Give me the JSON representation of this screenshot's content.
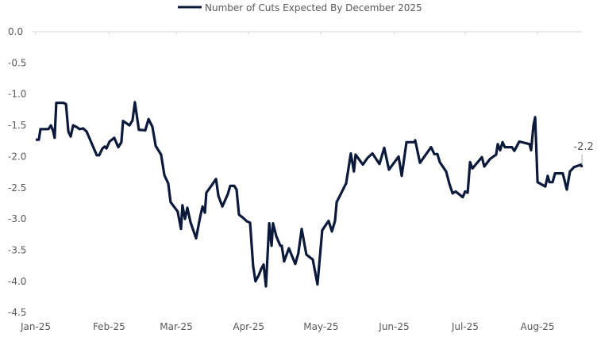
{
  "chart_data": {
    "type": "line",
    "title": "",
    "xlabel": "",
    "ylabel": "",
    "ylim": [
      -4.5,
      0
    ],
    "yticks": [
      "0.0",
      "-0.5",
      "-1.0",
      "-1.5",
      "-2.0",
      "-2.5",
      "-3.0",
      "-3.5",
      "-4.0",
      "-4.5"
    ],
    "ytick_values": [
      0,
      -0.5,
      -1,
      -1.5,
      -2,
      -2.5,
      -3,
      -3.5,
      -4,
      -4.5
    ],
    "xlim_days": [
      0,
      234
    ],
    "xticks": [
      "Jan-25",
      "Feb-25",
      "Mar-25",
      "Apr-25",
      "May-25",
      "Jun-25",
      "Jul-25",
      "Aug-25"
    ],
    "xtick_days": [
      0,
      31,
      59.4,
      90,
      120.6,
      151.5,
      181.5,
      212.1
    ],
    "x_unit": "days since 1 Jan 2025",
    "grid": false,
    "legend": {
      "placement": "top-center",
      "entries": [
        "Number of Cuts Expected By December 2025"
      ]
    },
    "annotation": {
      "text": "-2.2",
      "day": 230.9,
      "value": -2.17
    },
    "colors": {
      "series": "#0b1a3a",
      "axis": "#d9d9d9",
      "text": "#595959"
    },
    "series": [
      {
        "name": "Number of Cuts Expected By December 2025",
        "points": [
          [
            0,
            -1.73
          ],
          [
            1.3,
            -1.73
          ],
          [
            2,
            -1.56
          ],
          [
            4.4,
            -1.56
          ],
          [
            5.4,
            -1.56
          ],
          [
            6.4,
            -1.5
          ],
          [
            7.4,
            -1.6
          ],
          [
            8,
            -1.7
          ],
          [
            8.7,
            -1.14
          ],
          [
            11.7,
            -1.14
          ],
          [
            12.8,
            -1.16
          ],
          [
            13.8,
            -1.6
          ],
          [
            14.8,
            -1.68
          ],
          [
            15.8,
            -1.5
          ],
          [
            17.4,
            -1.53
          ],
          [
            18.5,
            -1.56
          ],
          [
            20.1,
            -1.55
          ],
          [
            21.5,
            -1.6
          ],
          [
            23.8,
            -1.8
          ],
          [
            25.8,
            -1.98
          ],
          [
            26.8,
            -1.98
          ],
          [
            28.2,
            -1.87
          ],
          [
            29.2,
            -1.84
          ],
          [
            29.9,
            -1.87
          ],
          [
            31.2,
            -1.76
          ],
          [
            33.2,
            -1.7
          ],
          [
            34.9,
            -1.85
          ],
          [
            36.2,
            -1.77
          ],
          [
            36.9,
            -1.43
          ],
          [
            39.6,
            -1.5
          ],
          [
            40.9,
            -1.42
          ],
          [
            41.9,
            -1.13
          ],
          [
            43.6,
            -1.57
          ],
          [
            46.3,
            -1.58
          ],
          [
            47.7,
            -1.4
          ],
          [
            49.3,
            -1.52
          ],
          [
            50.7,
            -1.83
          ],
          [
            53,
            -1.97
          ],
          [
            54.4,
            -2.3
          ],
          [
            56,
            -2.43
          ],
          [
            57,
            -2.73
          ],
          [
            60,
            -2.88
          ],
          [
            61.4,
            -3.16
          ],
          [
            62,
            -2.78
          ],
          [
            63.1,
            -3.0
          ],
          [
            64.1,
            -2.82
          ],
          [
            65.4,
            -3.05
          ],
          [
            67.8,
            -3.31
          ],
          [
            69.5,
            -2.97
          ],
          [
            70.5,
            -2.8
          ],
          [
            71.5,
            -2.9
          ],
          [
            72.1,
            -2.58
          ],
          [
            74.2,
            -2.47
          ],
          [
            76.2,
            -2.36
          ],
          [
            77.2,
            -2.63
          ],
          [
            78.9,
            -2.8
          ],
          [
            81.2,
            -2.6
          ],
          [
            82.2,
            -2.47
          ],
          [
            83.9,
            -2.47
          ],
          [
            84.9,
            -2.53
          ],
          [
            85.9,
            -2.93
          ],
          [
            87.6,
            -2.98
          ],
          [
            89.3,
            -3.04
          ],
          [
            90.6,
            -3.06
          ],
          [
            91.9,
            -3.76
          ],
          [
            92.9,
            -4.0
          ],
          [
            94.3,
            -3.9
          ],
          [
            95.3,
            -3.8
          ],
          [
            96.3,
            -3.73
          ],
          [
            97.3,
            -4.08
          ],
          [
            98.7,
            -3.07
          ],
          [
            99.7,
            -3.43
          ],
          [
            100.3,
            -3.07
          ],
          [
            101.7,
            -3.28
          ],
          [
            103.4,
            -3.43
          ],
          [
            104,
            -3.43
          ],
          [
            105,
            -3.68
          ],
          [
            107,
            -3.47
          ],
          [
            109.7,
            -3.72
          ],
          [
            111,
            -3.55
          ],
          [
            112.4,
            -3.16
          ],
          [
            114.4,
            -3.57
          ],
          [
            117.1,
            -3.65
          ],
          [
            119.1,
            -4.05
          ],
          [
            121.1,
            -3.18
          ],
          [
            123.8,
            -3.03
          ],
          [
            125.2,
            -3.2
          ],
          [
            126.5,
            -3.03
          ],
          [
            127.2,
            -2.73
          ],
          [
            131.2,
            -2.43
          ],
          [
            133.2,
            -1.95
          ],
          [
            134.5,
            -2.24
          ],
          [
            135.2,
            -1.97
          ],
          [
            138.3,
            -2.13
          ],
          [
            140.3,
            -2.02
          ],
          [
            142.3,
            -1.95
          ],
          [
            145.3,
            -2.12
          ],
          [
            147.3,
            -1.86
          ],
          [
            149.3,
            -2.21
          ],
          [
            153.4,
            -2.0
          ],
          [
            154.7,
            -2.31
          ],
          [
            156.7,
            -1.77
          ],
          [
            160.1,
            -1.77
          ],
          [
            160.4,
            -1.74
          ],
          [
            162.4,
            -2.1
          ],
          [
            167.1,
            -1.85
          ],
          [
            168.5,
            -1.96
          ],
          [
            169.8,
            -1.96
          ],
          [
            170.8,
            -2.09
          ],
          [
            173.5,
            -2.24
          ],
          [
            174.8,
            -2.43
          ],
          [
            176.2,
            -2.59
          ],
          [
            177.5,
            -2.56
          ],
          [
            180.5,
            -2.65
          ],
          [
            181.5,
            -2.56
          ],
          [
            182.6,
            -2.58
          ],
          [
            183.6,
            -2.09
          ],
          [
            184.6,
            -2.19
          ],
          [
            188.6,
            -2.01
          ],
          [
            189.6,
            -2.16
          ],
          [
            192,
            -2.04
          ],
          [
            194.6,
            -1.97
          ],
          [
            195.3,
            -1.8
          ],
          [
            196.3,
            -1.9
          ],
          [
            197.3,
            -1.77
          ],
          [
            198.3,
            -1.85
          ],
          [
            201.3,
            -1.85
          ],
          [
            202.3,
            -1.91
          ],
          [
            204.4,
            -1.76
          ],
          [
            208.7,
            -1.8
          ],
          [
            209.4,
            -1.9
          ],
          [
            210.4,
            -1.5
          ],
          [
            211.1,
            -1.37
          ],
          [
            212.1,
            -2.41
          ],
          [
            215.4,
            -2.48
          ],
          [
            216.4,
            -2.31
          ],
          [
            217.1,
            -2.41
          ],
          [
            218.5,
            -2.41
          ],
          [
            219.5,
            -2.27
          ],
          [
            222.8,
            -2.27
          ],
          [
            224.5,
            -2.53
          ],
          [
            225.8,
            -2.24
          ],
          [
            227.5,
            -2.17
          ],
          [
            230.5,
            -2.13
          ],
          [
            230.9,
            -2.17
          ]
        ]
      }
    ]
  }
}
